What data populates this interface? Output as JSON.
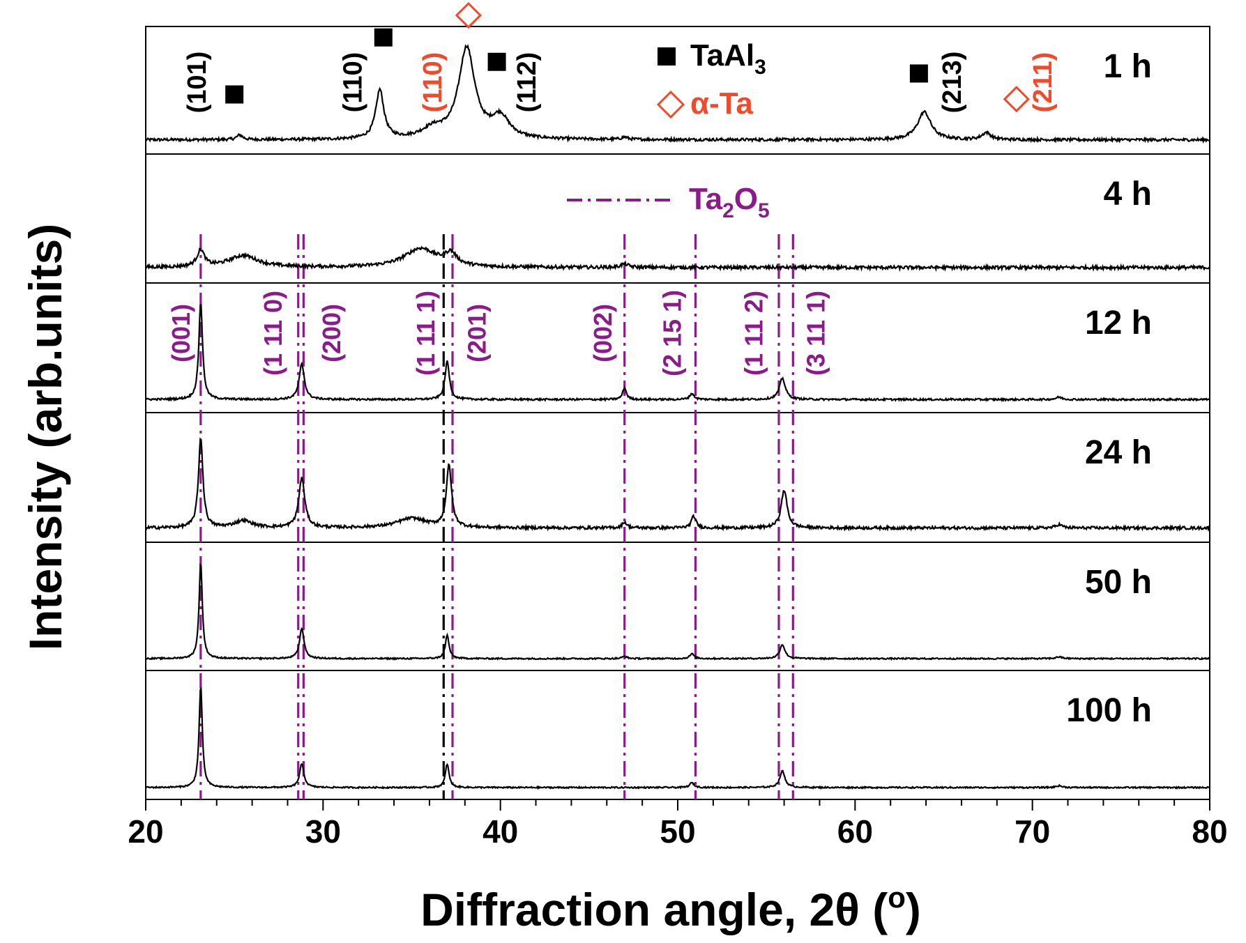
{
  "colors": {
    "black": "#000000",
    "purple": "#8B1A8B",
    "red": "#F04A2A"
  },
  "chart_data": {
    "type": "line",
    "title": "",
    "xlabel": "Diffraction angle, 2θ (o)",
    "ylabel": "Intensity (arb.units)",
    "xlim": [
      20,
      80
    ],
    "xticks": [
      "20",
      "30",
      "40",
      "50",
      "60",
      "70",
      "80"
    ],
    "grid": false,
    "panels": [
      {
        "label": "1 h",
        "baseline": 0.05,
        "noise": 0.012,
        "peaks": [
          {
            "x": 25.3,
            "h": 0.04,
            "w": 0.4
          },
          {
            "x": 33.2,
            "h": 0.42,
            "w": 0.55
          },
          {
            "x": 38.1,
            "h": 0.78,
            "w": 1.1
          },
          {
            "x": 40.0,
            "h": 0.18,
            "w": 1.2
          },
          {
            "x": 36.2,
            "h": 0.08,
            "w": 1.5
          },
          {
            "x": 47.0,
            "h": 0.02,
            "w": 0.4
          },
          {
            "x": 63.9,
            "h": 0.24,
            "w": 0.9
          },
          {
            "x": 67.4,
            "h": 0.06,
            "w": 0.6
          }
        ]
      },
      {
        "label": "4 h",
        "baseline": 0.06,
        "noise": 0.014,
        "peaks": [
          {
            "x": 23.1,
            "h": 0.14,
            "w": 0.5
          },
          {
            "x": 25.5,
            "h": 0.1,
            "w": 2.0
          },
          {
            "x": 35.5,
            "h": 0.16,
            "w": 2.2
          },
          {
            "x": 37.2,
            "h": 0.1,
            "w": 0.8
          },
          {
            "x": 47.0,
            "h": 0.03,
            "w": 0.5
          }
        ]
      },
      {
        "label": "12 h",
        "baseline": 0.04,
        "noise": 0.008,
        "peaks": [
          {
            "x": 23.1,
            "h": 0.82,
            "w": 0.25
          },
          {
            "x": 28.8,
            "h": 0.3,
            "w": 0.35
          },
          {
            "x": 37.0,
            "h": 0.32,
            "w": 0.3
          },
          {
            "x": 47.0,
            "h": 0.1,
            "w": 0.25
          },
          {
            "x": 50.8,
            "h": 0.05,
            "w": 0.3
          },
          {
            "x": 55.9,
            "h": 0.18,
            "w": 0.4
          },
          {
            "x": 71.5,
            "h": 0.02,
            "w": 0.4
          }
        ]
      },
      {
        "label": "24 h",
        "baseline": 0.05,
        "noise": 0.012,
        "peaks": [
          {
            "x": 23.1,
            "h": 0.76,
            "w": 0.3
          },
          {
            "x": 25.5,
            "h": 0.06,
            "w": 1.2
          },
          {
            "x": 28.8,
            "h": 0.42,
            "w": 0.4
          },
          {
            "x": 35.0,
            "h": 0.08,
            "w": 2.0
          },
          {
            "x": 37.1,
            "h": 0.52,
            "w": 0.35
          },
          {
            "x": 47.0,
            "h": 0.05,
            "w": 0.3
          },
          {
            "x": 50.9,
            "h": 0.1,
            "w": 0.3
          },
          {
            "x": 56.0,
            "h": 0.32,
            "w": 0.4
          },
          {
            "x": 71.5,
            "h": 0.03,
            "w": 0.4
          }
        ]
      },
      {
        "label": "50 h",
        "baseline": 0.03,
        "noise": 0.006,
        "peaks": [
          {
            "x": 23.1,
            "h": 0.82,
            "w": 0.22
          },
          {
            "x": 28.8,
            "h": 0.26,
            "w": 0.3
          },
          {
            "x": 37.0,
            "h": 0.2,
            "w": 0.25
          },
          {
            "x": 47.0,
            "h": 0.02,
            "w": 0.3
          },
          {
            "x": 50.8,
            "h": 0.04,
            "w": 0.3
          },
          {
            "x": 55.9,
            "h": 0.12,
            "w": 0.35
          },
          {
            "x": 71.5,
            "h": 0.015,
            "w": 0.4
          }
        ]
      },
      {
        "label": "100 h",
        "baseline": 0.03,
        "noise": 0.006,
        "peaks": [
          {
            "x": 23.1,
            "h": 0.86,
            "w": 0.22
          },
          {
            "x": 28.8,
            "h": 0.2,
            "w": 0.3
          },
          {
            "x": 37.0,
            "h": 0.2,
            "w": 0.25
          },
          {
            "x": 50.8,
            "h": 0.04,
            "w": 0.3
          },
          {
            "x": 55.9,
            "h": 0.14,
            "w": 0.35
          },
          {
            "x": 71.5,
            "h": 0.015,
            "w": 0.4
          }
        ]
      }
    ],
    "reference_lines": {
      "series": "Ta2O5",
      "positions": [
        {
          "x": 23.1,
          "color": "purple"
        },
        {
          "x": 28.6,
          "color": "purple"
        },
        {
          "x": 28.9,
          "color": "purple"
        },
        {
          "x": 36.8,
          "color": "black"
        },
        {
          "x": 37.3,
          "color": "purple"
        },
        {
          "x": 47.0,
          "color": "purple"
        },
        {
          "x": 51.0,
          "color": "purple"
        },
        {
          "x": 55.7,
          "color": "purple"
        },
        {
          "x": 56.5,
          "color": "purple"
        }
      ]
    },
    "legend": {
      "taal3_prefix": "TaAl",
      "taal3_sub": "3",
      "alpha_ta": "α-Ta",
      "ta2o5_a": "Ta",
      "ta2o5_sub1": "2",
      "ta2o5_b": "O",
      "ta2o5_sub2": "5"
    },
    "annotations_1h": [
      {
        "text": "(101)",
        "x": 22.9,
        "color": "black"
      },
      {
        "text": "(110)",
        "x": 31.7,
        "color": "black"
      },
      {
        "text": "(110)",
        "x": 36.2,
        "color": "red"
      },
      {
        "text": "(112)",
        "x": 41.5,
        "color": "black"
      },
      {
        "text": "(213)",
        "x": 65.5,
        "color": "black"
      },
      {
        "text": "(211)",
        "x": 70.6,
        "color": "red"
      }
    ],
    "markers_1h": [
      {
        "symbol": "square",
        "x": 25.0,
        "h": 0.44
      },
      {
        "symbol": "square",
        "x": 33.4,
        "h": 0.93
      },
      {
        "symbol": "square",
        "x": 39.8,
        "h": 0.72
      },
      {
        "symbol": "square",
        "x": 63.6,
        "h": 0.62
      },
      {
        "symbol": "diamond",
        "x": 38.2,
        "h": 1.12
      },
      {
        "symbol": "diamond",
        "x": 69.1,
        "h": 0.4
      }
    ],
    "annotations_12h": [
      {
        "text": "(001)",
        "x": 22.0
      },
      {
        "text": "(1 11 0)",
        "x": 27.2
      },
      {
        "text": "(200)",
        "x": 30.5
      },
      {
        "text": "(1 11 1)",
        "x": 35.8
      },
      {
        "text": "(201)",
        "x": 38.7
      },
      {
        "text": "(002)",
        "x": 45.8
      },
      {
        "text": "(2 15 1)",
        "x": 49.7
      },
      {
        "text": "(1 11 2)",
        "x": 54.3
      },
      {
        "text": "(3 11 1)",
        "x": 57.8
      }
    ],
    "axis_label_parts": {
      "x_main": "Diffraction angle, 2θ (",
      "x_sup": "o",
      "x_end": ")"
    }
  }
}
